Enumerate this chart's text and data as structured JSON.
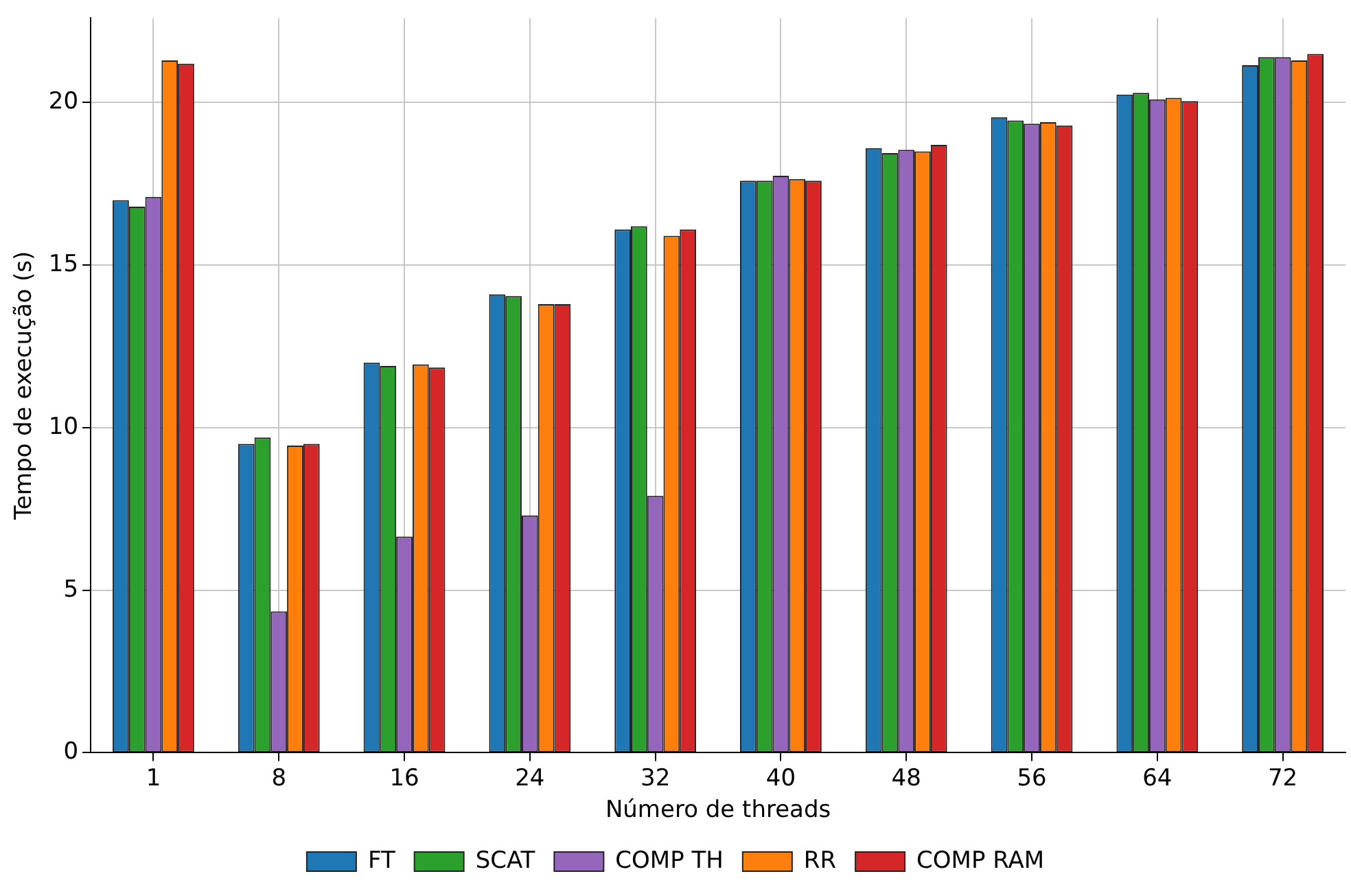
{
  "chart_data": {
    "type": "bar",
    "xlabel": "Número de threads",
    "ylabel": "Tempo de execução (s)",
    "categories": [
      "1",
      "8",
      "16",
      "24",
      "32",
      "40",
      "48",
      "56",
      "64",
      "72"
    ],
    "series": [
      {
        "name": "FT",
        "color": "#1f77b4",
        "values": [
          17.0,
          9.5,
          12.0,
          14.1,
          16.1,
          17.6,
          18.6,
          19.55,
          20.25,
          21.15
        ]
      },
      {
        "name": "SCAT",
        "color": "#2ca02c",
        "values": [
          16.8,
          9.7,
          11.9,
          14.05,
          16.2,
          17.6,
          18.45,
          19.45,
          20.3,
          21.4
        ]
      },
      {
        "name": "COMP TH",
        "color": "#9467bd",
        "values": [
          17.1,
          4.35,
          6.65,
          7.3,
          7.9,
          17.75,
          18.55,
          19.35,
          20.1,
          21.4
        ]
      },
      {
        "name": "RR",
        "color": "#ff7f0e",
        "values": [
          21.3,
          9.45,
          11.95,
          13.8,
          15.9,
          17.65,
          18.5,
          19.4,
          20.15,
          21.3
        ]
      },
      {
        "name": "COMP RAM",
        "color": "#d62728",
        "values": [
          21.2,
          9.5,
          11.85,
          13.8,
          16.1,
          17.6,
          18.7,
          19.3,
          20.05,
          21.5
        ]
      }
    ],
    "ylim": [
      0,
      22.6
    ],
    "yticks": [
      0,
      5,
      10,
      15,
      20
    ],
    "grid": true,
    "legend": "bottom"
  }
}
